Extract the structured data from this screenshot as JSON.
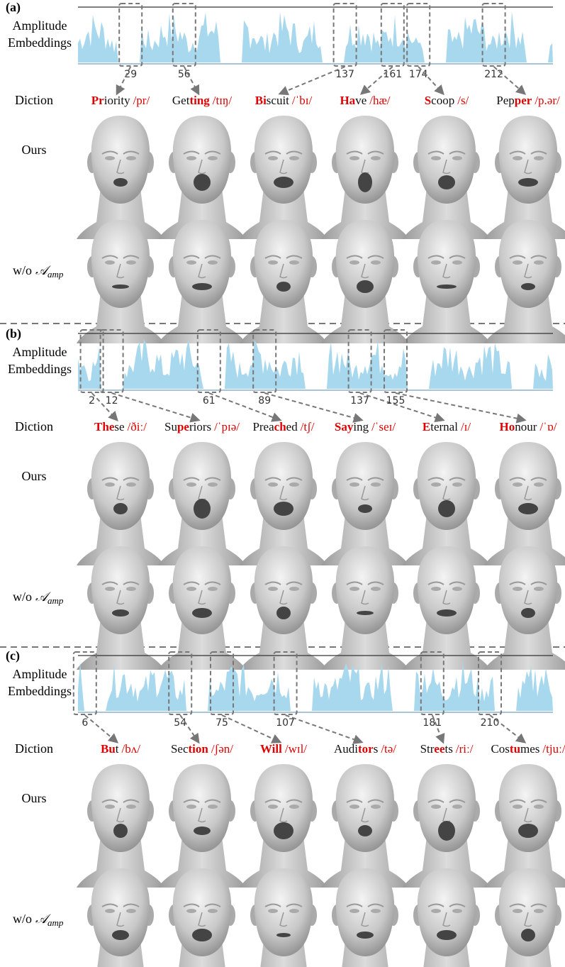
{
  "panels": [
    {
      "label": "(a)",
      "amplitude_label": [
        "Amplitude",
        "Embeddings"
      ],
      "frames": [
        29,
        56,
        137,
        161,
        174,
        212
      ],
      "row_labels": {
        "diction": "Diction",
        "ours": "Ours",
        "ablation": {
          "prefix": "w/o",
          "symbol": "𝒜",
          "subscript": "amp"
        }
      },
      "words": [
        {
          "segments": [
            {
              "text": "Pr",
              "red": true
            },
            {
              "text": "iority"
            }
          ],
          "ipa": "/pr/"
        },
        {
          "segments": [
            {
              "text": "Get"
            },
            {
              "text": "ting",
              "red": true
            }
          ],
          "ipa": "/tɪŋ/"
        },
        {
          "segments": [
            {
              "text": "Bi",
              "red": true
            },
            {
              "text": "scuit"
            }
          ],
          "ipa": "/ˈbɪ/"
        },
        {
          "segments": [
            {
              "text": "Ha",
              "red": true
            },
            {
              "text": "ve"
            }
          ],
          "ipa": "/hæ/"
        },
        {
          "segments": [
            {
              "text": "S",
              "red": true
            },
            {
              "text": "coop"
            }
          ],
          "ipa": "/s/"
        },
        {
          "segments": [
            {
              "text": "Pep"
            },
            {
              "text": "per",
              "red": true
            }
          ],
          "ipa": "/p.ər/"
        }
      ]
    },
    {
      "label": "(b)",
      "amplitude_label": [
        "Amplitude",
        "Embeddings"
      ],
      "frames": [
        2,
        12,
        61,
        89,
        137,
        155
      ],
      "row_labels": {
        "diction": "Diction",
        "ours": "Ours",
        "ablation": {
          "prefix": "w/o",
          "symbol": "𝒜",
          "subscript": "amp"
        }
      },
      "words": [
        {
          "segments": [
            {
              "text": "The",
              "red": true
            },
            {
              "text": "se"
            }
          ],
          "ipa": "/ðiː/"
        },
        {
          "segments": [
            {
              "text": "Su"
            },
            {
              "text": "pe",
              "red": true
            },
            {
              "text": "riors"
            }
          ],
          "ipa": "/ˈpɪə/"
        },
        {
          "segments": [
            {
              "text": "Prea"
            },
            {
              "text": "ch",
              "red": true
            },
            {
              "text": "ed"
            }
          ],
          "ipa": "/tʃ/"
        },
        {
          "segments": [
            {
              "text": "Say",
              "red": true
            },
            {
              "text": "ing"
            }
          ],
          "ipa": "/ˈseɪ/"
        },
        {
          "segments": [
            {
              "text": "E",
              "red": true
            },
            {
              "text": "ternal"
            }
          ],
          "ipa": "/ɪ/"
        },
        {
          "segments": [
            {
              "text": "Ho",
              "red": true
            },
            {
              "text": "nour"
            }
          ],
          "ipa": "/ˈɒ/"
        }
      ]
    },
    {
      "label": "(c)",
      "amplitude_label": [
        "Amplitude",
        "Embeddings"
      ],
      "frames": [
        6,
        54,
        75,
        107,
        181,
        210
      ],
      "row_labels": {
        "diction": "Diction",
        "ours": "Ours",
        "ablation": {
          "prefix": "w/o",
          "symbol": "𝒜",
          "subscript": "amp"
        }
      },
      "words": [
        {
          "segments": [
            {
              "text": "Bu",
              "red": true
            },
            {
              "text": "t"
            }
          ],
          "ipa": "/bʌ/"
        },
        {
          "segments": [
            {
              "text": "Sec"
            },
            {
              "text": "tion",
              "red": true
            }
          ],
          "ipa": "/ʃən/"
        },
        {
          "segments": [
            {
              "text": "Will",
              "red": true
            }
          ],
          "ipa": "/wɪl/"
        },
        {
          "segments": [
            {
              "text": "Audi"
            },
            {
              "text": "tor",
              "red": true
            },
            {
              "text": "s"
            }
          ],
          "ipa": "/tə/"
        },
        {
          "segments": [
            {
              "text": "Str"
            },
            {
              "text": "ee",
              "red": true
            },
            {
              "text": "ts"
            }
          ],
          "ipa": "/riː/"
        },
        {
          "segments": [
            {
              "text": "Cos"
            },
            {
              "text": "tu",
              "red": true
            },
            {
              "text": "mes"
            }
          ],
          "ipa": "/tjuː/"
        }
      ]
    }
  ]
}
